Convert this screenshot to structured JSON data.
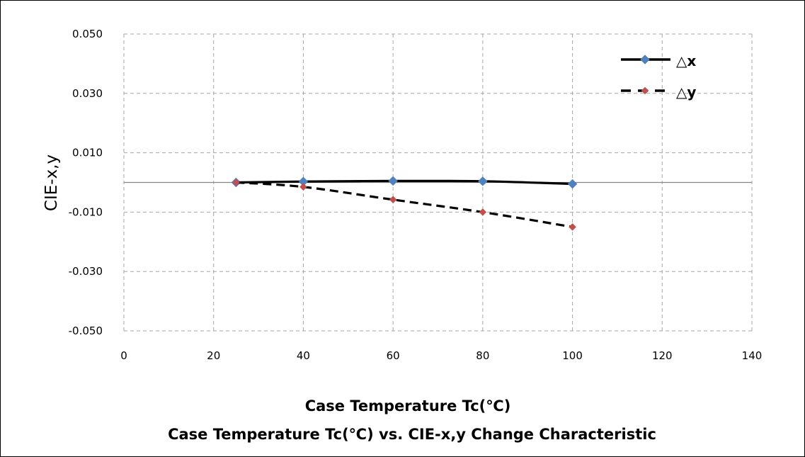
{
  "chart_data": {
    "type": "line",
    "title": "Case Temperature Tc(℃) vs. CIE-x,y Change Characteristic",
    "xlabel": "Case Temperature Tc(℃)",
    "ylabel": "CIE-x,y",
    "xlim": [
      0,
      140
    ],
    "ylim": [
      -0.05,
      0.05
    ],
    "x_ticks": [
      "0",
      "20",
      "40",
      "60",
      "80",
      "100",
      "120",
      "140"
    ],
    "y_ticks": [
      "0.050",
      "0.030",
      "0.010",
      "-0.010",
      "-0.030",
      "-0.050"
    ],
    "grid": true,
    "legend_position": "top-right",
    "series": [
      {
        "name": "△x",
        "line_style": "solid",
        "marker": "diamond",
        "marker_color": "#4F81BD",
        "line_color": "#000000",
        "x": [
          25,
          40,
          60,
          80,
          100
        ],
        "y": [
          0.0,
          0.0003,
          0.0005,
          0.0004,
          -0.0005
        ]
      },
      {
        "name": "△y",
        "line_style": "dashed",
        "marker": "diamond",
        "marker_color": "#C0504D",
        "line_color": "#000000",
        "x": [
          25,
          40,
          60,
          80,
          100
        ],
        "y": [
          0.0,
          -0.0015,
          -0.0058,
          -0.01,
          -0.015
        ]
      }
    ]
  }
}
